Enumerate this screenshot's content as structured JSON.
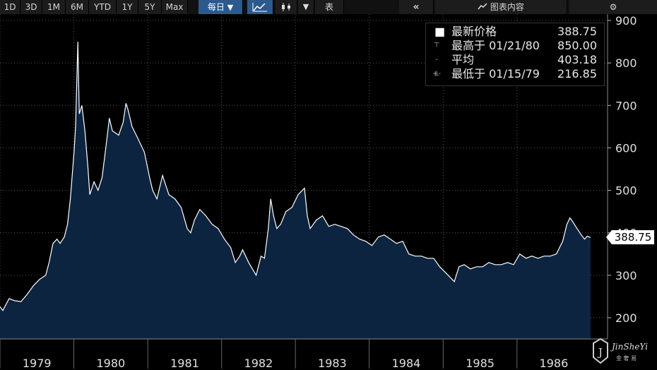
{
  "toolbar": {
    "ranges": [
      "1D",
      "3D",
      "1M",
      "6M",
      "YTD",
      "1Y",
      "5Y",
      "Max"
    ],
    "frequency": "每日",
    "table_label": "表",
    "panel_label": "图表内容"
  },
  "legend": {
    "last": {
      "label": "最新价格",
      "value": "388.75"
    },
    "high": {
      "label": "最高于 01/21/80",
      "value": "850.00"
    },
    "avg": {
      "label": "平均",
      "value": "403.18"
    },
    "low": {
      "label": "最低于 01/15/79",
      "value": "216.85"
    }
  },
  "price_tag": "388.75",
  "watermark": {
    "text": "JinSheYi",
    "sub": "金 奢 易"
  },
  "colors": {
    "fill": "#0d2440",
    "line": "#ffffff",
    "grid": "#555555",
    "active": "#2d5a8c"
  },
  "chart_data": {
    "type": "area",
    "title": "",
    "xlabel": "",
    "ylabel": "",
    "x_ticks": [
      "1979",
      "1980",
      "1981",
      "1982",
      "1983",
      "1984",
      "1985",
      "1986"
    ],
    "y_ticks": [
      200,
      300,
      400,
      500,
      600,
      700,
      800,
      900
    ],
    "ylim": [
      150,
      915
    ],
    "xlim": [
      "1979-01-01",
      "1986-12-31"
    ],
    "grid": true,
    "legend_position": "top-right",
    "series": [
      {
        "points": [
          [
            "1979-01-01",
            226
          ],
          [
            "1979-01-15",
            217
          ],
          [
            "1979-02-15",
            245
          ],
          [
            "1979-03-15",
            240
          ],
          [
            "1979-04-15",
            238
          ],
          [
            "1979-05-15",
            255
          ],
          [
            "1979-06-15",
            275
          ],
          [
            "1979-07-15",
            290
          ],
          [
            "1979-08-15",
            300
          ],
          [
            "1979-09-01",
            330
          ],
          [
            "1979-09-20",
            375
          ],
          [
            "1979-10-10",
            385
          ],
          [
            "1979-10-25",
            375
          ],
          [
            "1979-11-15",
            390
          ],
          [
            "1979-12-01",
            420
          ],
          [
            "1979-12-15",
            480
          ],
          [
            "1980-01-02",
            590
          ],
          [
            "1980-01-10",
            650
          ],
          [
            "1980-01-21",
            850
          ],
          [
            "1980-01-28",
            680
          ],
          [
            "1980-02-10",
            700
          ],
          [
            "1980-02-25",
            640
          ],
          [
            "1980-03-10",
            560
          ],
          [
            "1980-03-20",
            490
          ],
          [
            "1980-04-10",
            520
          ],
          [
            "1980-04-30",
            500
          ],
          [
            "1980-05-20",
            530
          ],
          [
            "1980-06-10",
            610
          ],
          [
            "1980-06-25",
            670
          ],
          [
            "1980-07-10",
            640
          ],
          [
            "1980-08-10",
            630
          ],
          [
            "1980-09-01",
            660
          ],
          [
            "1980-09-15",
            705
          ],
          [
            "1980-09-25",
            690
          ],
          [
            "1980-10-15",
            650
          ],
          [
            "1980-11-15",
            620
          ],
          [
            "1980-12-15",
            590
          ],
          [
            "1981-01-10",
            530
          ],
          [
            "1981-01-25",
            500
          ],
          [
            "1981-02-15",
            480
          ],
          [
            "1981-03-15",
            535
          ],
          [
            "1981-04-15",
            490
          ],
          [
            "1981-05-15",
            480
          ],
          [
            "1981-06-15",
            460
          ],
          [
            "1981-07-15",
            410
          ],
          [
            "1981-08-01",
            400
          ],
          [
            "1981-08-20",
            430
          ],
          [
            "1981-09-15",
            455
          ],
          [
            "1981-10-15",
            440
          ],
          [
            "1981-11-15",
            420
          ],
          [
            "1981-12-15",
            410
          ],
          [
            "1982-01-15",
            385
          ],
          [
            "1982-02-15",
            365
          ],
          [
            "1982-03-10",
            330
          ],
          [
            "1982-04-01",
            345
          ],
          [
            "1982-04-15",
            360
          ],
          [
            "1982-05-15",
            330
          ],
          [
            "1982-06-21",
            300
          ],
          [
            "1982-07-15",
            345
          ],
          [
            "1982-08-01",
            340
          ],
          [
            "1982-08-20",
            410
          ],
          [
            "1982-09-01",
            480
          ],
          [
            "1982-09-15",
            440
          ],
          [
            "1982-10-01",
            410
          ],
          [
            "1982-10-20",
            420
          ],
          [
            "1982-11-15",
            450
          ],
          [
            "1982-12-15",
            460
          ],
          [
            "1983-01-15",
            490
          ],
          [
            "1983-02-15",
            505
          ],
          [
            "1983-03-01",
            440
          ],
          [
            "1983-03-15",
            410
          ],
          [
            "1983-04-15",
            430
          ],
          [
            "1983-05-15",
            440
          ],
          [
            "1983-06-15",
            415
          ],
          [
            "1983-07-15",
            420
          ],
          [
            "1983-08-15",
            415
          ],
          [
            "1983-09-15",
            410
          ],
          [
            "1983-10-15",
            395
          ],
          [
            "1983-11-15",
            385
          ],
          [
            "1983-12-15",
            380
          ],
          [
            "1984-01-15",
            370
          ],
          [
            "1984-02-15",
            390
          ],
          [
            "1984-03-15",
            395
          ],
          [
            "1984-04-15",
            385
          ],
          [
            "1984-05-15",
            375
          ],
          [
            "1984-06-15",
            380
          ],
          [
            "1984-07-15",
            350
          ],
          [
            "1984-08-15",
            345
          ],
          [
            "1984-09-15",
            345
          ],
          [
            "1984-10-15",
            340
          ],
          [
            "1984-11-15",
            340
          ],
          [
            "1984-12-15",
            320
          ],
          [
            "1985-01-15",
            305
          ],
          [
            "1985-02-25",
            285
          ],
          [
            "1985-03-20",
            320
          ],
          [
            "1985-04-15",
            325
          ],
          [
            "1985-05-15",
            315
          ],
          [
            "1985-06-15",
            320
          ],
          [
            "1985-07-15",
            320
          ],
          [
            "1985-08-15",
            330
          ],
          [
            "1985-09-15",
            325
          ],
          [
            "1985-10-15",
            325
          ],
          [
            "1985-11-15",
            330
          ],
          [
            "1985-12-15",
            325
          ],
          [
            "1986-01-15",
            350
          ],
          [
            "1986-02-15",
            340
          ],
          [
            "1986-03-15",
            345
          ],
          [
            "1986-04-15",
            340
          ],
          [
            "1986-05-15",
            345
          ],
          [
            "1986-06-15",
            345
          ],
          [
            "1986-07-15",
            350
          ],
          [
            "1986-08-15",
            380
          ],
          [
            "1986-09-05",
            420
          ],
          [
            "1986-09-20",
            435
          ],
          [
            "1986-10-05",
            425
          ],
          [
            "1986-10-25",
            410
          ],
          [
            "1986-11-15",
            395
          ],
          [
            "1986-12-01",
            385
          ],
          [
            "1986-12-15",
            392
          ],
          [
            "1986-12-31",
            388.75
          ]
        ]
      }
    ]
  }
}
